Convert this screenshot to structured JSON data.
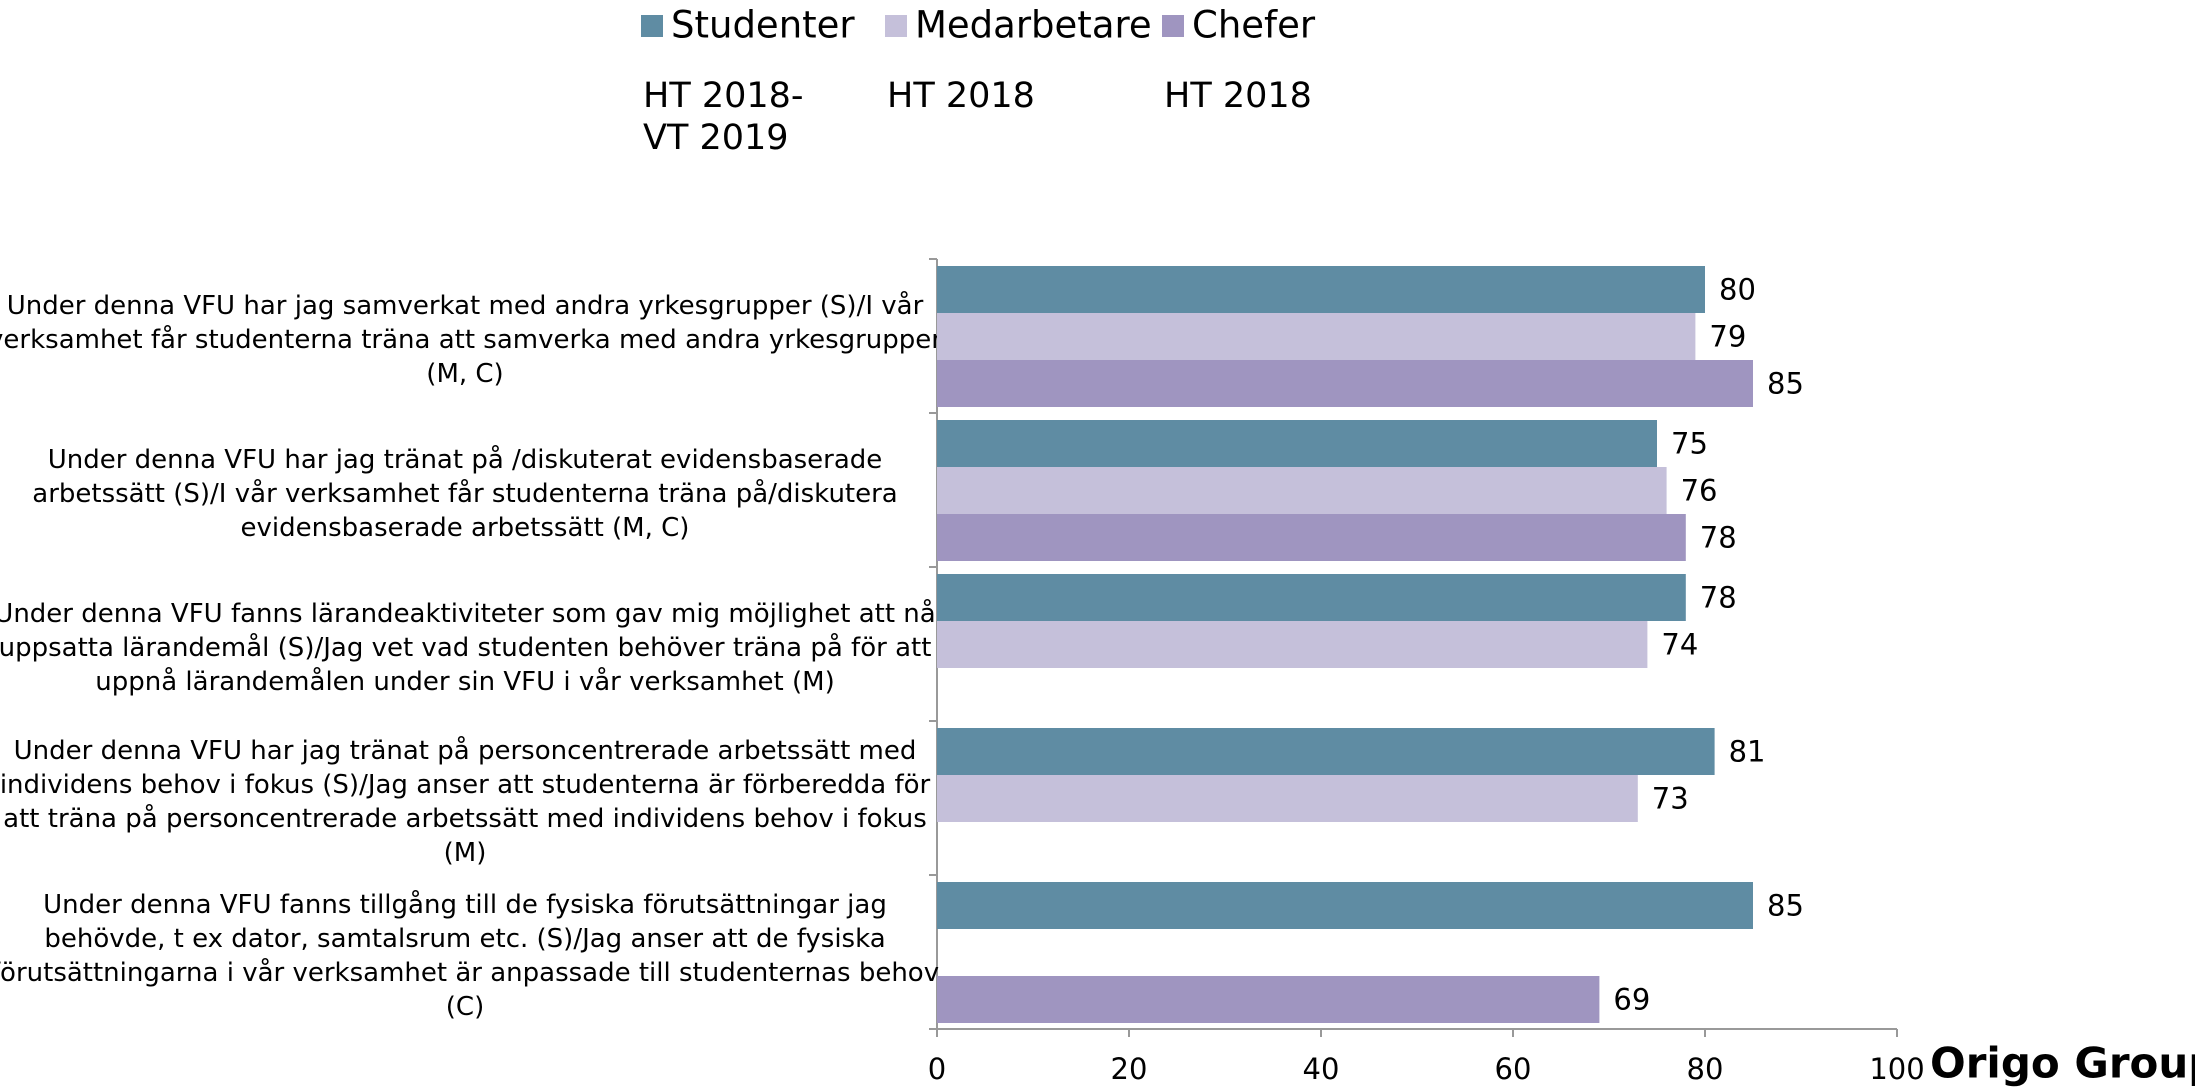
{
  "chart_data": {
    "type": "hbar",
    "categories": [
      "Under denna VFU har jag samverkat med andra yrkesgrupper (S)/I vår\nverksamhet får studenterna träna att samverka med andra yrkesgrupper\n(M, C)",
      "Under denna VFU har jag tränat på /diskuterat evidensbaserade\narbetssätt (S)/I vår verksamhet får studenterna träna på/diskutera\nevidensbaserade arbetssätt (M, C)",
      "Under denna VFU fanns lärandeaktiviteter som gav mig möjlighet att nå\nuppsatta lärandemål (S)/Jag vet vad studenten behöver träna på för att\nuppnå lärandemålen under sin VFU i vår verksamhet (M)",
      "Under denna VFU har jag tränat på personcentrerade arbetssätt med\nindividens behov i fokus (S)/Jag anser att studenterna är förberedda för\natt träna på personcentrerade arbetssätt med individens behov i fokus\n(M)",
      "Under denna VFU fanns tillgång till de fysiska förutsättningar jag\nbehövde, t ex dator, samtalsrum etc. (S)/Jag anser att de fysiska\nförutsättningarna i vår verksamhet är anpassade till studenternas behov\n(C)"
    ],
    "series": [
      {
        "name": "Studenter",
        "period": "HT 2018-\nVT 2019",
        "color": "#5f8ca3",
        "values": [
          80,
          75,
          78,
          81,
          85
        ]
      },
      {
        "name": "Medarbetare",
        "period": "HT 2018",
        "color": "#c5c0da",
        "values": [
          79,
          76,
          74,
          73,
          null
        ]
      },
      {
        "name": "Chefer",
        "period": "HT 2018",
        "color": "#9f95c0",
        "values": [
          85,
          78,
          null,
          null,
          69
        ]
      }
    ],
    "xlim": [
      0,
      100
    ],
    "xticks": [
      0,
      20,
      40,
      60,
      80,
      100
    ],
    "legend": "top",
    "logo": "Origo Group"
  }
}
